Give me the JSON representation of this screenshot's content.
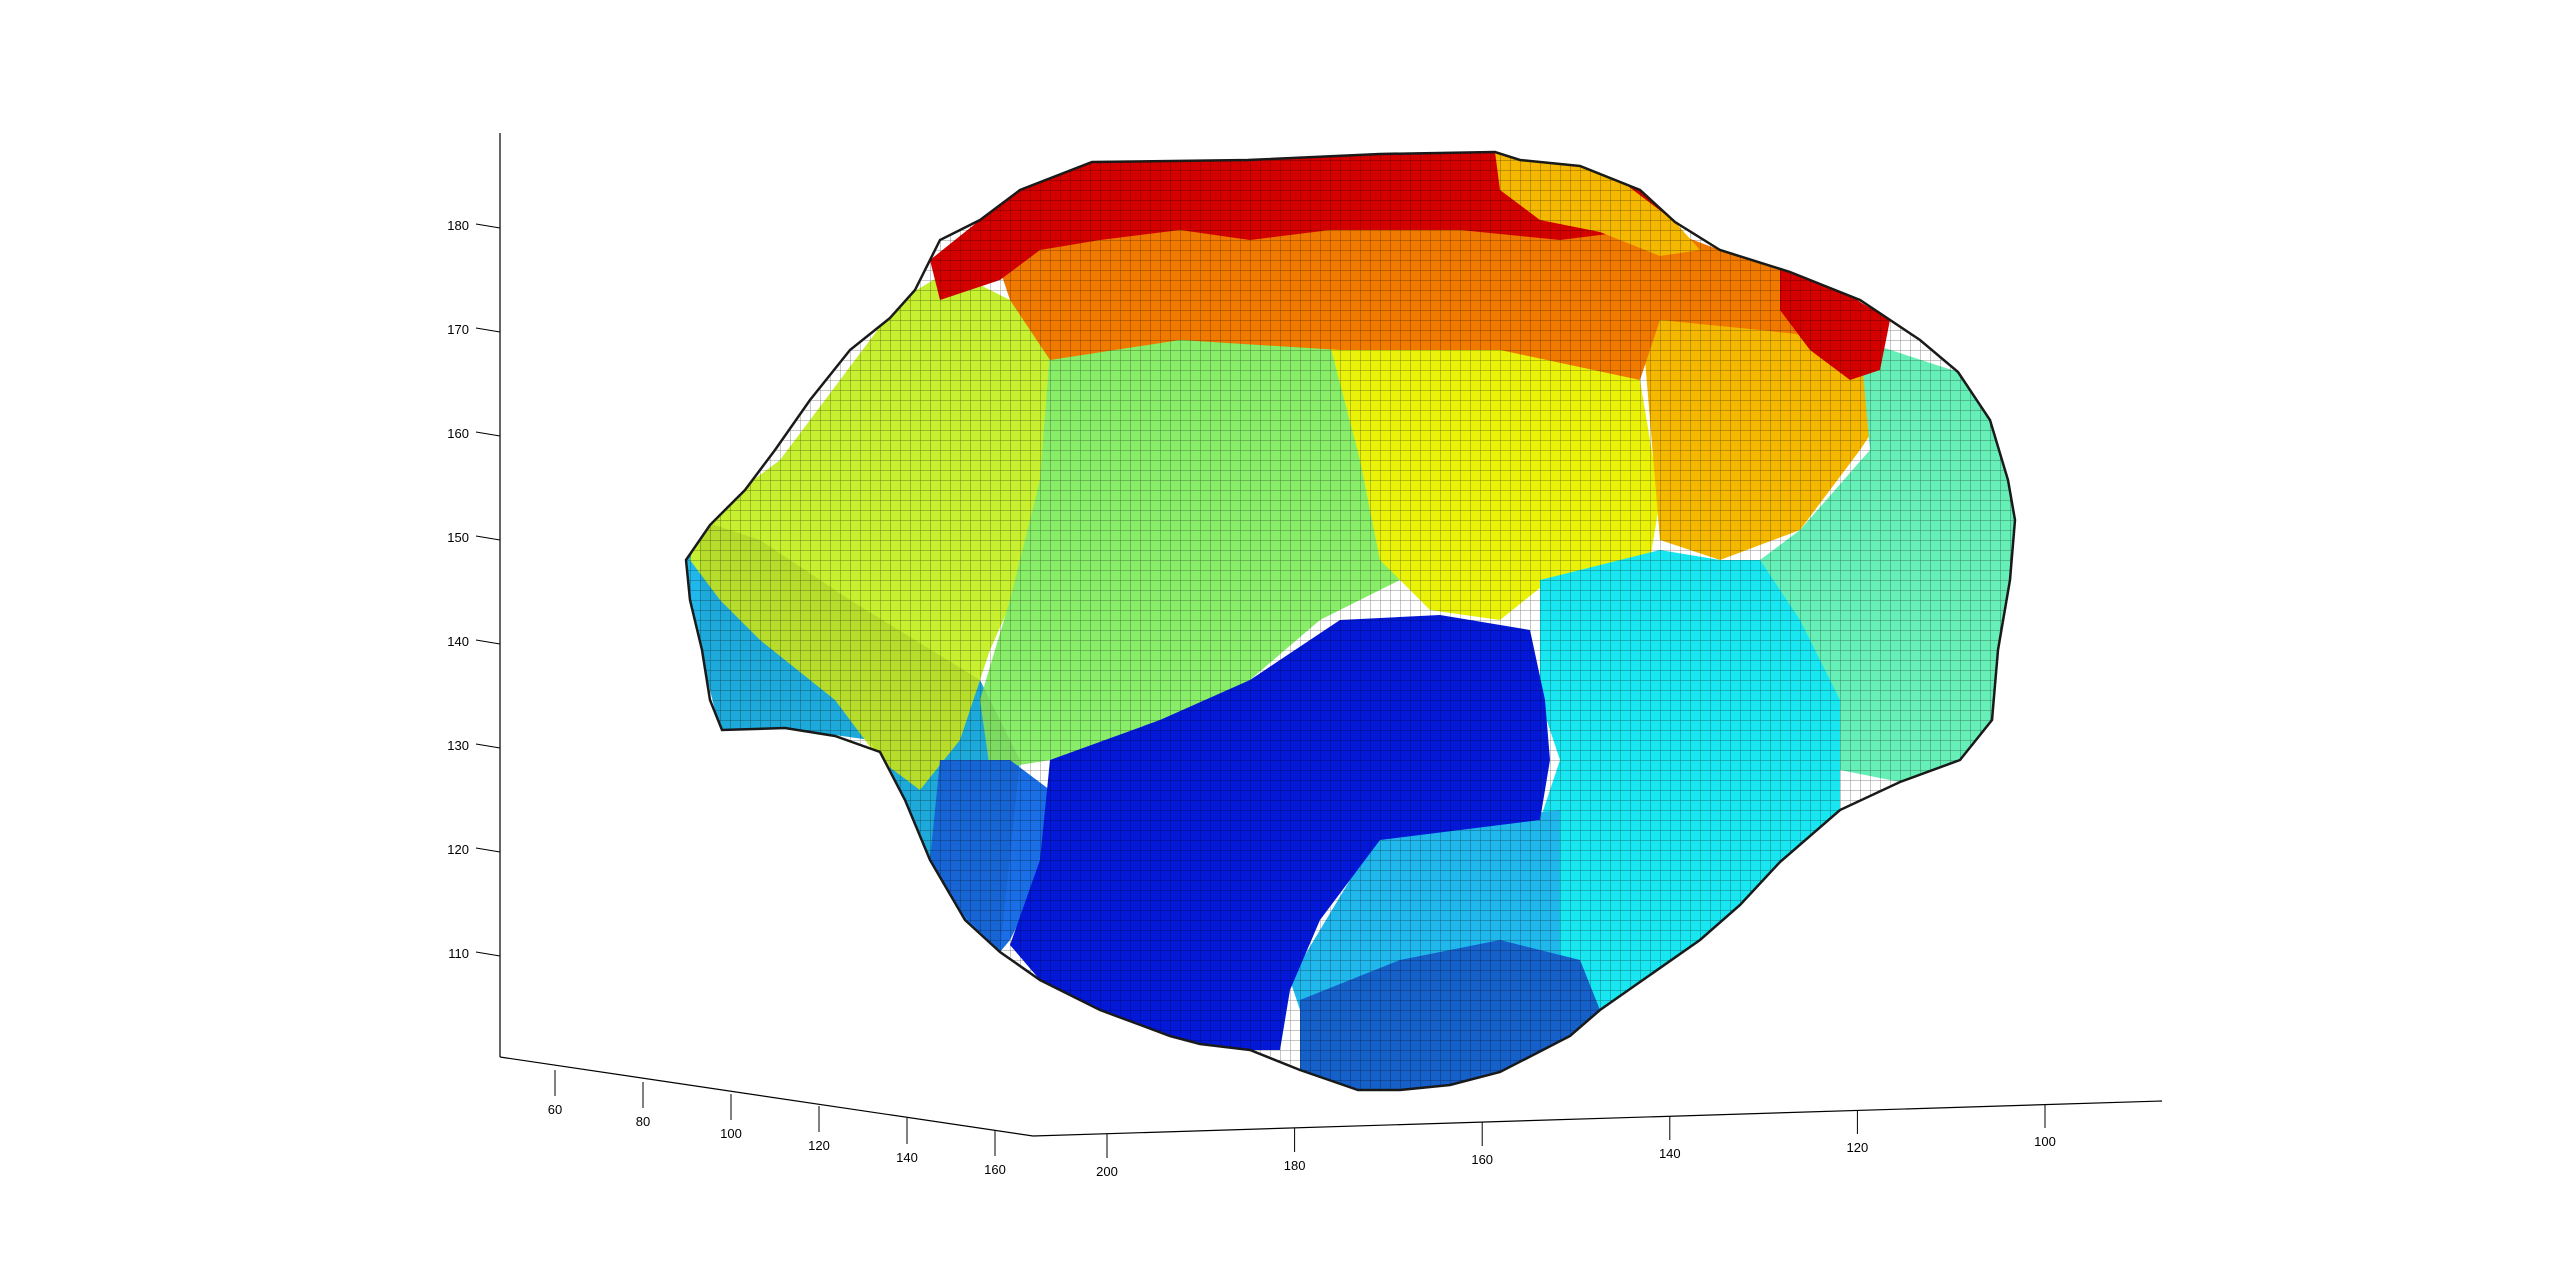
{
  "chart_data": {
    "type": "3d-voxel-surface",
    "title": "",
    "xlabel": "",
    "ylabel": "",
    "zlabel": "",
    "grid": false,
    "legend": "none",
    "z_axis": {
      "range": [
        100,
        190
      ],
      "ticks": [
        110,
        120,
        130,
        140,
        150,
        160,
        170,
        180
      ],
      "tick_labels": [
        "110",
        "120",
        "130",
        "140",
        "150",
        "160",
        "170",
        "180"
      ]
    },
    "left_floor_axis": {
      "range": [
        50,
        170
      ],
      "ticks": [
        60,
        80,
        100,
        120,
        140,
        160
      ],
      "tick_labels": [
        "60",
        "80",
        "100",
        "120",
        "140",
        "160"
      ]
    },
    "right_floor_axis": {
      "range": [
        205,
        80
      ],
      "ticks": [
        200,
        180,
        160,
        140,
        120,
        100
      ],
      "tick_labels": [
        "200",
        "180",
        "160",
        "140",
        "120",
        "100"
      ]
    },
    "colormap": "jet",
    "regions": [
      {
        "name": "dark-red",
        "color": "#d40000"
      },
      {
        "name": "orange",
        "color": "#f07a00"
      },
      {
        "name": "light-orange",
        "color": "#f5b800"
      },
      {
        "name": "yellow",
        "color": "#eaf20a"
      },
      {
        "name": "yellow-green",
        "color": "#c6f030"
      },
      {
        "name": "light-green",
        "color": "#88ee6a"
      },
      {
        "name": "aquamarine",
        "color": "#66f0b8"
      },
      {
        "name": "cyan",
        "color": "#18e6f0"
      },
      {
        "name": "light-blue",
        "color": "#20b8ec"
      },
      {
        "name": "medium-blue",
        "color": "#1a6ee6"
      },
      {
        "name": "dark-blue",
        "color": "#0418d8"
      }
    ]
  }
}
